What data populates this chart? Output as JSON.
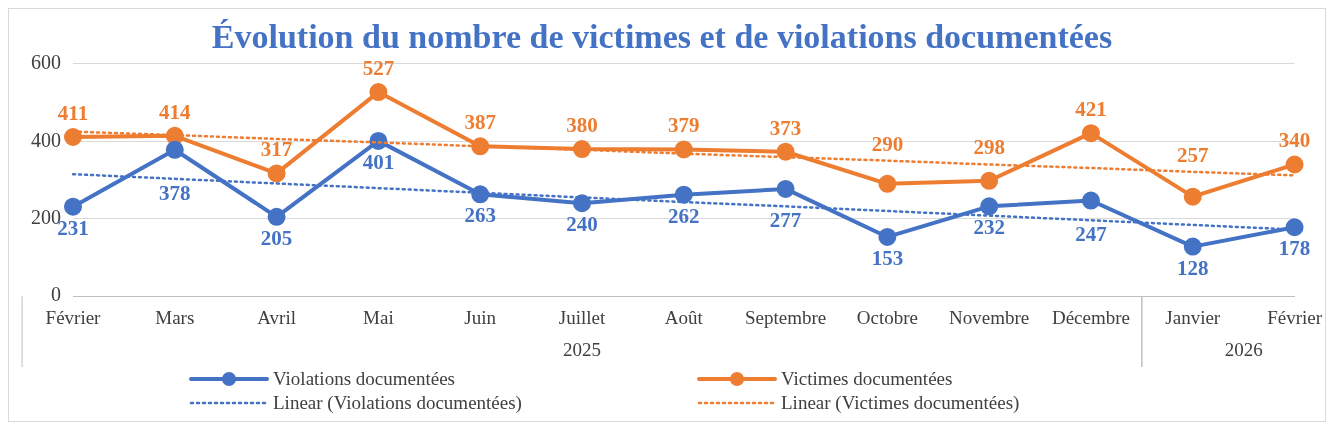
{
  "chart_data": {
    "type": "line",
    "title": "Évolution du nombre de victimes et de violations documentées",
    "categories": [
      "Février",
      "Mars",
      "Avril",
      "Mai",
      "Juin",
      "Juillet",
      "Août",
      "Septembre",
      "Octobre",
      "Novembre",
      "Décembre",
      "Janvier",
      "Février"
    ],
    "annotations": [
      "2025",
      "2026"
    ],
    "series": [
      {
        "name": "Violations documentées",
        "color": "#4472c4",
        "values": [
          231,
          378,
          205,
          401,
          263,
          240,
          262,
          277,
          153,
          232,
          247,
          128,
          178
        ],
        "value_labels": [
          "231",
          "378",
          "205",
          "401",
          "263",
          "240",
          "262",
          "277",
          "153",
          "232",
          "247",
          "128",
          "178"
        ],
        "marker": "circle",
        "line_style": "solid"
      },
      {
        "name": "Victimes documentées",
        "color": "#ed7d31",
        "values": [
          411,
          414,
          317,
          527,
          387,
          380,
          379,
          373,
          290,
          298,
          421,
          257,
          340
        ],
        "value_labels": [
          "411",
          "414",
          "317",
          "527",
          "387",
          "380",
          "379",
          "373",
          "290",
          "298",
          "421",
          "257",
          "340"
        ],
        "marker": "circle",
        "line_style": "solid"
      },
      {
        "name": "Linear (Violations documentées)",
        "color": "#4472c4",
        "values": [
          315,
          303,
          291,
          279,
          267,
          255,
          243,
          232,
          220,
          208,
          196,
          184,
          172
        ],
        "marker": "none",
        "line_style": "dotted"
      },
      {
        "name": "Linear (Victimes documentées)",
        "color": "#ed7d31",
        "values": [
          425,
          416,
          406,
          397,
          387,
          378,
          368,
          359,
          350,
          340,
          331,
          321,
          312
        ],
        "marker": "none",
        "line_style": "dotted"
      }
    ],
    "ylim": [
      0,
      600
    ],
    "yticks": [
      0,
      200,
      400,
      600
    ],
    "grid": "y",
    "legend": "bottom"
  }
}
